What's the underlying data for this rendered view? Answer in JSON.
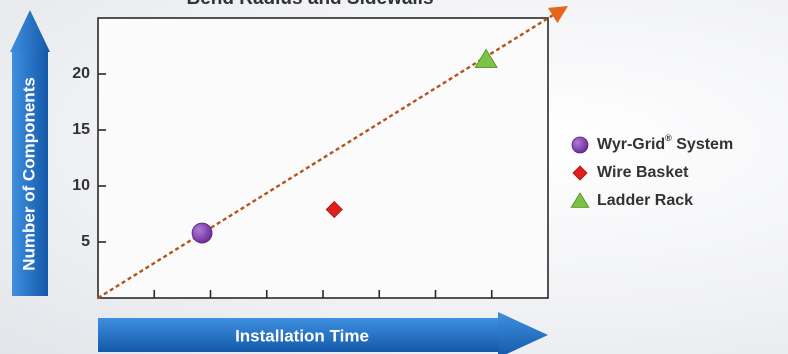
{
  "chart_data": {
    "type": "scatter",
    "title": "Bend Radius and Sidewalls",
    "xlabel": "Installation Time",
    "ylabel": "Number of Components",
    "xlim": [
      0,
      8
    ],
    "ylim": [
      0,
      25
    ],
    "yticks": [
      5,
      10,
      15,
      20
    ],
    "grid": false,
    "legend_position": "right",
    "trend_line": {
      "from": [
        0,
        0
      ],
      "to": [
        8,
        25
      ],
      "style": "dashed",
      "color": "#b5531a"
    },
    "series": [
      {
        "name": "Wyr-Grid",
        "name_suffix": "®",
        "name_tail": " System",
        "marker": "circle",
        "color": "#7b3aa6",
        "x": 1.85,
        "y": 5.8
      },
      {
        "name": "Wire Basket",
        "marker": "diamond",
        "color": "#e0201c",
        "x": 4.2,
        "y": 7.9
      },
      {
        "name": "Ladder Rack",
        "marker": "triangle",
        "color": "#7cc243",
        "x": 6.9,
        "y": 21.3
      }
    ]
  },
  "colors": {
    "axis_arrow": "#1f6fc5",
    "trend_arrow_head": "#e8661c"
  }
}
